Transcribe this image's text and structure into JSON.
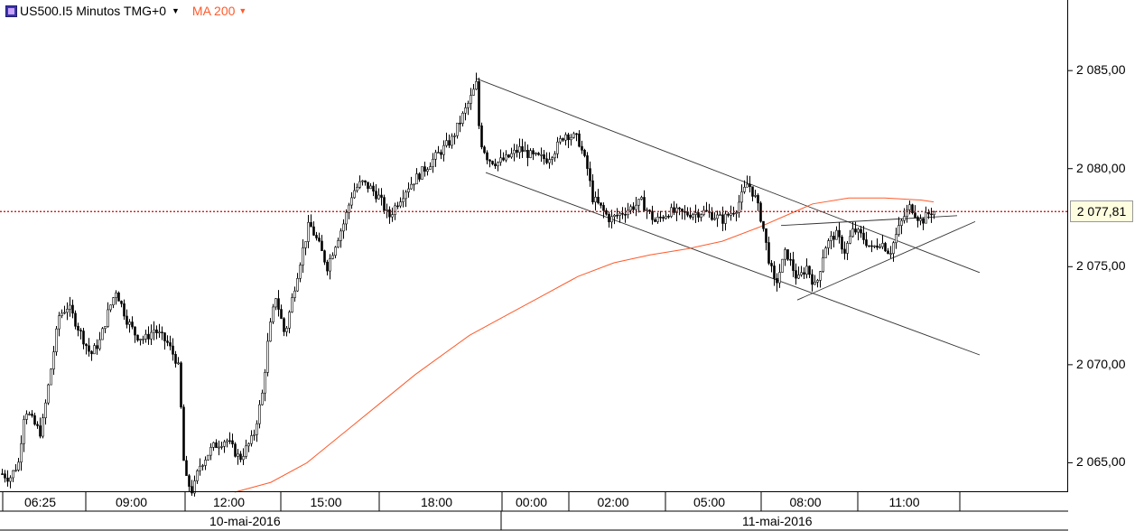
{
  "header": {
    "symbol": "US500.I",
    "timeframe_label": "5 Minutos TMG+0",
    "indicator": "MA 200",
    "symbol_icon": "cfd-icon",
    "caret_icon": "triangle-down-icon"
  },
  "colors": {
    "background": "#ffffff",
    "candle": "#000000",
    "ma_line": "#ff5a2a",
    "price_line": "#cc0000",
    "price_box_bg": "#fffde0"
  },
  "current_price_label": "2 077,81",
  "chart_data": {
    "type": "candlestick",
    "title": "US500.I 5 Minutos TMG+0",
    "ylim": [
      2063.5,
      2088.6
    ],
    "y_ticks": [
      2065,
      2070,
      2075,
      2080,
      2085
    ],
    "y_tick_labels": [
      "2 065,00",
      "2 070,00",
      "2 075,00",
      "2 080,00",
      "2 085,00"
    ],
    "x_tick_labels": [
      "06:25",
      "09:00",
      "12:00",
      "15:00",
      "18:00",
      "00:00",
      "02:00",
      "05:00",
      "08:00",
      "11:00"
    ],
    "date_labels": [
      "10-mai-2016",
      "11-mai-2016"
    ],
    "current_price": 2077.81,
    "price_path": [
      [
        0,
        2064.5
      ],
      [
        10,
        2064.2
      ],
      [
        20,
        2065.0
      ],
      [
        27,
        2067.8
      ],
      [
        37,
        2067.0
      ],
      [
        45,
        2066.5
      ],
      [
        55,
        2069.5
      ],
      [
        65,
        2072.5
      ],
      [
        75,
        2073.0
      ],
      [
        90,
        2071.5
      ],
      [
        100,
        2070.5
      ],
      [
        110,
        2071.2
      ],
      [
        120,
        2072.8
      ],
      [
        128,
        2073.8
      ],
      [
        140,
        2072.3
      ],
      [
        150,
        2071.5
      ],
      [
        160,
        2071.3
      ],
      [
        170,
        2071.8
      ],
      [
        185,
        2071.1
      ],
      [
        195,
        2070.2
      ],
      [
        199,
        2069.5
      ],
      [
        201,
        2066.0
      ],
      [
        205,
        2064.2
      ],
      [
        213,
        2063.5
      ],
      [
        220,
        2064.8
      ],
      [
        235,
        2065.8
      ],
      [
        250,
        2066.2
      ],
      [
        265,
        2065.2
      ],
      [
        280,
        2066.3
      ],
      [
        290,
        2068.5
      ],
      [
        297,
        2071.5
      ],
      [
        305,
        2073.5
      ],
      [
        315,
        2071.5
      ],
      [
        325,
        2073.8
      ],
      [
        333,
        2075.5
      ],
      [
        342,
        2077.2
      ],
      [
        352,
        2076.2
      ],
      [
        362,
        2075.0
      ],
      [
        372,
        2076.3
      ],
      [
        380,
        2077.2
      ],
      [
        390,
        2078.8
      ],
      [
        400,
        2079.3
      ],
      [
        410,
        2079.0
      ],
      [
        420,
        2078.5
      ],
      [
        430,
        2077.5
      ],
      [
        440,
        2078.3
      ],
      [
        450,
        2079.0
      ],
      [
        460,
        2079.5
      ],
      [
        470,
        2080.0
      ],
      [
        480,
        2080.5
      ],
      [
        490,
        2081.0
      ],
      [
        500,
        2081.5
      ],
      [
        510,
        2082.5
      ],
      [
        520,
        2083.5
      ],
      [
        527,
        2084.3
      ],
      [
        531,
        2081.5
      ],
      [
        540,
        2080.5
      ],
      [
        550,
        2080.3
      ],
      [
        560,
        2080.5
      ],
      [
        575,
        2081.0
      ],
      [
        590,
        2080.6
      ],
      [
        605,
        2080.5
      ],
      [
        615,
        2081.0
      ],
      [
        625,
        2081.8
      ],
      [
        640,
        2081.5
      ],
      [
        650,
        2080.0
      ],
      [
        656,
        2078.5
      ],
      [
        665,
        2078.0
      ],
      [
        675,
        2077.4
      ],
      [
        690,
        2077.8
      ],
      [
        710,
        2078.3
      ],
      [
        725,
        2077.3
      ],
      [
        740,
        2077.8
      ],
      [
        760,
        2077.7
      ],
      [
        780,
        2077.8
      ],
      [
        800,
        2077.4
      ],
      [
        815,
        2078.0
      ],
      [
        828,
        2079.3
      ],
      [
        836,
        2078.5
      ],
      [
        844,
        2077.2
      ],
      [
        850,
        2075.6
      ],
      [
        858,
        2074.0
      ],
      [
        870,
        2075.8
      ],
      [
        883,
        2074.3
      ],
      [
        893,
        2075.0
      ],
      [
        903,
        2073.9
      ],
      [
        913,
        2076.0
      ],
      [
        925,
        2076.7
      ],
      [
        935,
        2075.8
      ],
      [
        945,
        2076.9
      ],
      [
        955,
        2076.5
      ],
      [
        965,
        2075.9
      ],
      [
        975,
        2076.3
      ],
      [
        985,
        2075.7
      ],
      [
        992,
        2076.6
      ],
      [
        1000,
        2077.5
      ],
      [
        1008,
        2078.1
      ],
      [
        1015,
        2077.6
      ],
      [
        1020,
        2077.3
      ],
      [
        1030,
        2077.8
      ],
      [
        1034,
        2077.81
      ]
    ],
    "ma200_path": [
      [
        260,
        2063.5
      ],
      [
        300,
        2064.0
      ],
      [
        340,
        2065.0
      ],
      [
        380,
        2066.5
      ],
      [
        420,
        2068.0
      ],
      [
        460,
        2069.5
      ],
      [
        520,
        2071.5
      ],
      [
        560,
        2072.5
      ],
      [
        600,
        2073.5
      ],
      [
        640,
        2074.5
      ],
      [
        680,
        2075.2
      ],
      [
        720,
        2075.6
      ],
      [
        760,
        2075.9
      ],
      [
        800,
        2076.3
      ],
      [
        840,
        2077.0
      ],
      [
        880,
        2077.8
      ],
      [
        900,
        2078.2
      ],
      [
        940,
        2078.5
      ],
      [
        980,
        2078.5
      ],
      [
        1020,
        2078.4
      ],
      [
        1034,
        2078.3
      ]
    ],
    "trendlines": [
      {
        "from": [
          527,
          2084.6
        ],
        "to": [
          1085,
          2074.7
        ]
      },
      {
        "from": [
          538,
          2079.8
        ],
        "to": [
          1085,
          2070.5
        ]
      },
      {
        "from": [
          883,
          2073.3
        ],
        "to": [
          1080,
          2077.3
        ]
      },
      {
        "from": [
          865,
          2077.1
        ],
        "to": [
          1060,
          2077.6
        ]
      }
    ]
  }
}
